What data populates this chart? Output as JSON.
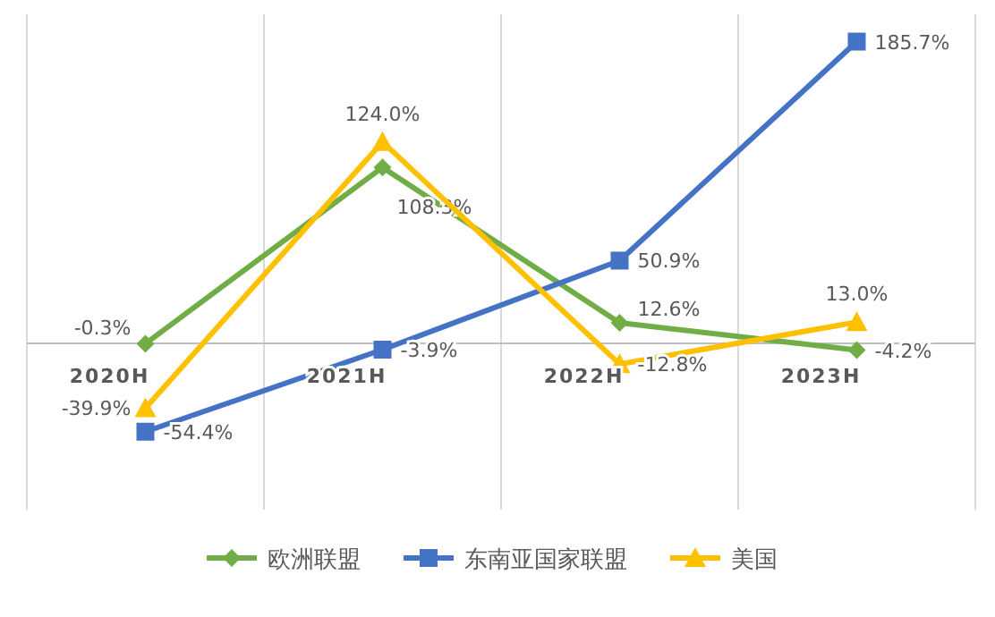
{
  "chart_data": {
    "type": "line",
    "categories": [
      "2020H",
      "2021H",
      "2022H",
      "2023H"
    ],
    "series": [
      {
        "name": "欧洲联盟",
        "color": "#70ad47",
        "marker": "diamond",
        "values": [
          -0.3,
          108.3,
          12.6,
          -4.2
        ],
        "value_labels": [
          "-0.3%",
          "108.3%",
          "12.6%",
          "-4.2%"
        ]
      },
      {
        "name": "东南亚国家联盟",
        "color": "#4472c4",
        "marker": "square",
        "values": [
          -54.4,
          -3.9,
          50.9,
          185.7
        ],
        "value_labels": [
          "-54.4%",
          "-3.9%",
          "50.9%",
          "185.7%"
        ]
      },
      {
        "name": "美国",
        "color": "#ffc000",
        "marker": "triangle",
        "values": [
          -39.9,
          124.0,
          -12.8,
          13.0
        ],
        "value_labels": [
          "-39.9%",
          "124.0%",
          "-12.8%",
          "13.0%"
        ]
      }
    ],
    "grid": "x",
    "legend": "bottom",
    "line_style": "solid"
  }
}
